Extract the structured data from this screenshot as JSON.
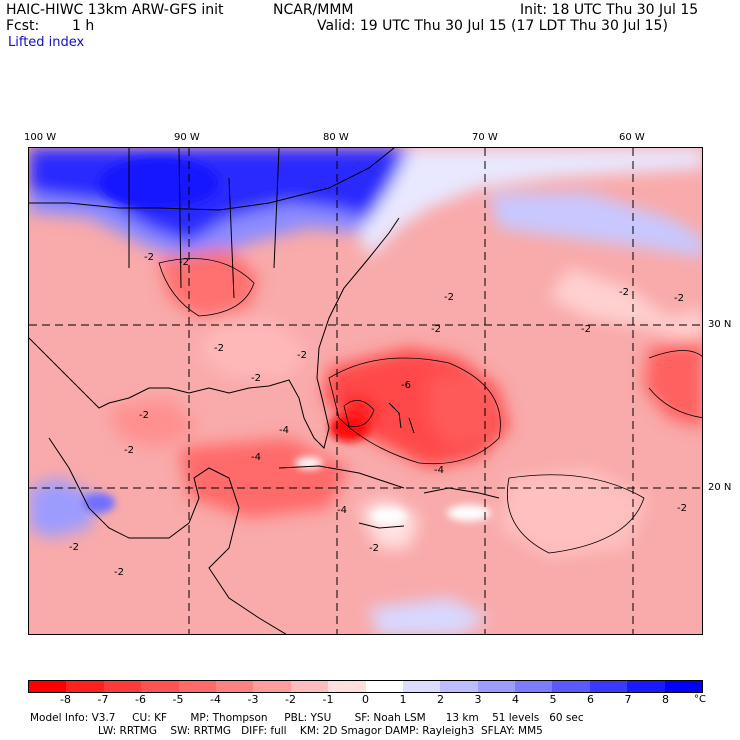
{
  "header": {
    "model": "HAIC-HIWC 13km ARW-GFS init",
    "center": "NCAR/MMM",
    "init": "Init: 18 UTC Thu 30 Jul 15",
    "fcst_label": "Fcst:",
    "fcst_value": "1 h",
    "valid": "Valid: 19 UTC Thu 30 Jul 15 (17 LDT Thu 30 Jul 15)",
    "field": "Lifted index"
  },
  "map": {
    "lon_labels": [
      "100 W",
      "90 W",
      "80 W",
      "70 W",
      "60 W"
    ],
    "lat_labels": [
      "30 N",
      "20 N"
    ],
    "contour_labels": [
      "-2",
      "-2",
      "-2",
      "-2",
      "-2",
      "-2",
      "-2",
      "-2",
      "-2",
      "-2",
      "-2",
      "-2",
      "-2",
      "-2",
      "-6",
      "-4",
      "-4",
      "-4",
      "-4",
      "-2",
      "-2"
    ]
  },
  "colorbar": {
    "ticks": [
      "-8",
      "-7",
      "-6",
      "-5",
      "-4",
      "-3",
      "-2",
      "-1",
      "0",
      "1",
      "2",
      "3",
      "4",
      "5",
      "6",
      "7",
      "8"
    ],
    "unit": "°C",
    "colors": [
      "#ff0000",
      "#ff2020",
      "#ff3a3a",
      "#ff5252",
      "#ff6a6a",
      "#ff8282",
      "#ff9c9c",
      "#ffbcbc",
      "#ffdede",
      "#ffffff",
      "#dcdcff",
      "#bcbcff",
      "#9c9cff",
      "#7c7cff",
      "#5a5aff",
      "#3a3aff",
      "#1a1aff",
      "#0000ff"
    ]
  },
  "footer": {
    "line1": "Model Info: V3.7     CU: KF       MP: Thompson     PBL: YSU       SF: Noah LSM      13 km    51 levels   60 sec",
    "line2": "LW: RRTMG    SW: RRTMG   DIFF: full    KM: 2D Smagor DAMP: Rayleigh3  SFLAY: MM5"
  }
}
